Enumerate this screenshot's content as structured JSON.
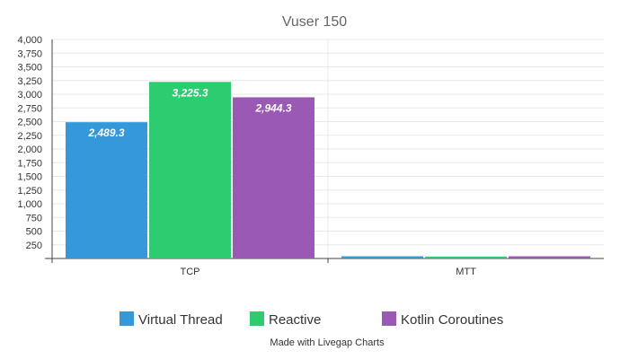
{
  "chart_data": {
    "type": "bar",
    "title": "Vuser 150",
    "categories": [
      "TCP",
      "MTT"
    ],
    "series": [
      {
        "name": "Virtual Thread",
        "color": "#3498db",
        "values": [
          2489.3,
          40
        ],
        "labels": [
          "2,489.3",
          ""
        ]
      },
      {
        "name": "Reactive",
        "color": "#2ecc71",
        "values": [
          3225.3,
          35
        ],
        "labels": [
          "3,225.3",
          ""
        ]
      },
      {
        "name": "Kotlin Coroutines",
        "color": "#9b59b6",
        "values": [
          2944.3,
          40
        ],
        "labels": [
          "2,944.3",
          ""
        ]
      }
    ],
    "ylim": [
      0,
      4000
    ],
    "yticks": [
      250,
      500,
      750,
      1000,
      1250,
      1500,
      1750,
      2000,
      2250,
      2500,
      2750,
      3000,
      3250,
      3500,
      3750,
      4000
    ],
    "ytick_labels": [
      "250",
      "500",
      "750",
      "1,000",
      "1,250",
      "1,500",
      "1,750",
      "2,000",
      "2,250",
      "2,500",
      "2,750",
      "3,000",
      "3,250",
      "3,500",
      "3,750",
      "4,000"
    ],
    "xlabel": "",
    "ylabel": "",
    "legend_position": "bottom"
  },
  "footer": "Made with Livegap Charts"
}
